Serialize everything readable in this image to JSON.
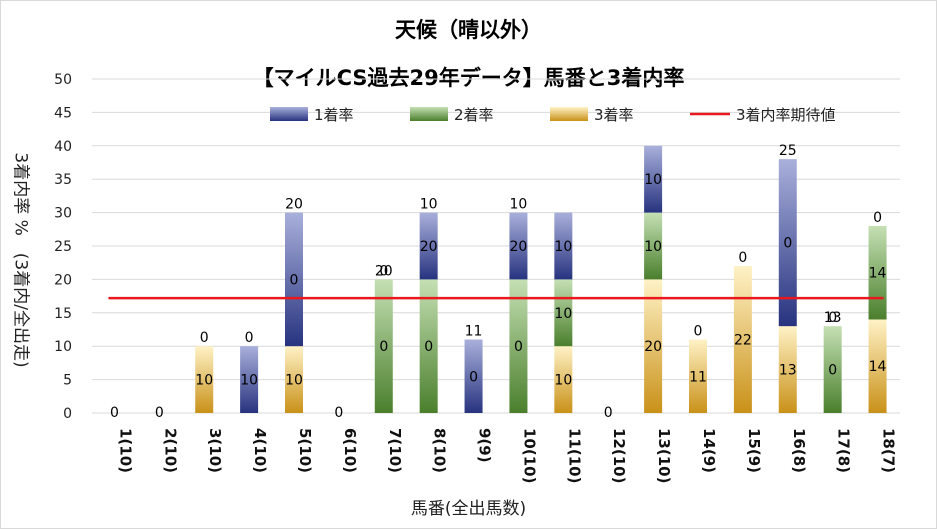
{
  "chart_data": {
    "type": "bar",
    "stacked": true,
    "title": "天候（晴以外）",
    "subtitle": "【マイルCS過去29年データ】馬番と3着内率",
    "xlabel": "馬番(全出馬数)",
    "ylabel": "3着内率 %　(3着内/全出走)",
    "ylim": [
      0,
      50
    ],
    "yticks": [
      "0",
      "5",
      "10",
      "15",
      "20",
      "25",
      "30",
      "35",
      "40",
      "45",
      "50"
    ],
    "categories": [
      "1(10)",
      "2(10)",
      "3(10)",
      "4(10)",
      "5(10)",
      "6(10)",
      "7(10)",
      "8(10)",
      "9(9)",
      "10(10)",
      "11(10)",
      "12(10)",
      "13(10)",
      "14(9)",
      "15(9)",
      "16(8)",
      "17(8)",
      "18(7)"
    ],
    "series": [
      {
        "name": "1着率",
        "color": "#2e3a8c",
        "values": [
          0,
          0,
          0,
          10,
          20,
          0,
          0,
          10,
          11,
          10,
          10,
          0,
          10,
          0,
          0,
          25,
          0,
          0
        ]
      },
      {
        "name": "2着率",
        "color": "#4e8a2e",
        "values": [
          0,
          0,
          0,
          0,
          0,
          0,
          20,
          20,
          0,
          20,
          10,
          0,
          10,
          0,
          0,
          0,
          13,
          14
        ]
      },
      {
        "name": "3着率",
        "color": "#d9a52a",
        "values": [
          0,
          0,
          10,
          0,
          10,
          0,
          0,
          0,
          0,
          0,
          10,
          0,
          20,
          11,
          22,
          13,
          0,
          14
        ]
      }
    ],
    "labels": [
      [
        "0"
      ],
      [
        "0"
      ],
      [
        "10",
        "0"
      ],
      [
        "10",
        "0"
      ],
      [
        "10",
        "0",
        "20"
      ],
      [
        "0"
      ],
      [
        "0",
        "20",
        "0"
      ],
      [
        "0",
        "20",
        "10"
      ],
      [
        "0",
        "11"
      ],
      [
        "0",
        "20",
        "10"
      ],
      [
        "10",
        "10",
        "10"
      ],
      [
        "0"
      ],
      [
        "20",
        "10",
        "10"
      ],
      [
        "11",
        "0"
      ],
      [
        "22",
        "0"
      ],
      [
        "13",
        "0",
        "25"
      ],
      [
        "0",
        "13",
        "0"
      ],
      [
        "14",
        "14",
        "0"
      ]
    ],
    "expected_line": {
      "name": "3着内率期待値",
      "value": 17.2,
      "color": "#e8181d"
    },
    "grid": true,
    "legend_position": "top"
  }
}
